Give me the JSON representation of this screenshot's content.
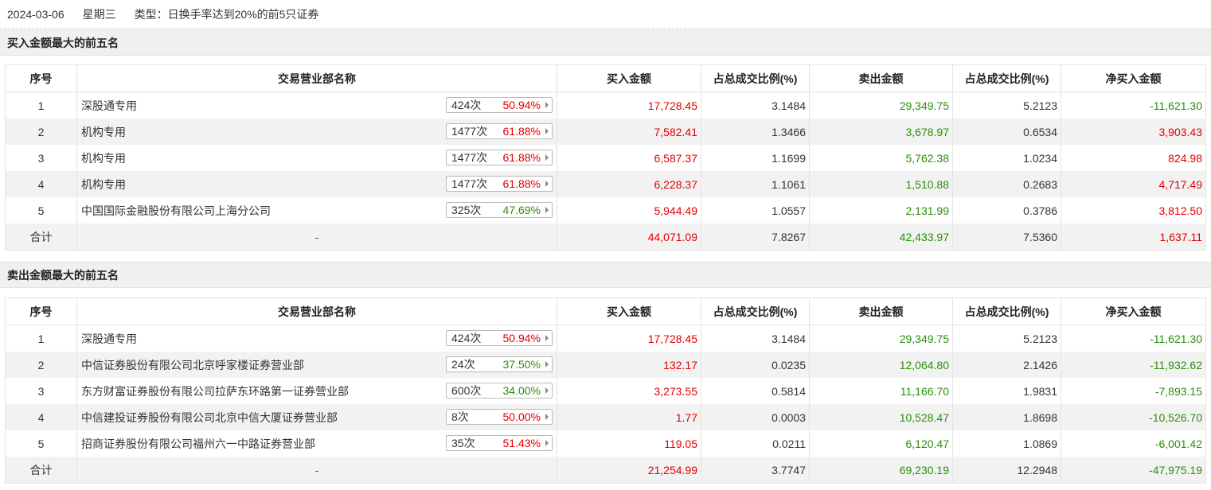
{
  "info": {
    "date": "2024-03-06",
    "weekday": "星期三",
    "type": "类型：日换手率达到20%的前5只证券"
  },
  "columns": [
    "序号",
    "交易营业部名称",
    "买入金额",
    "占总成交比例(%)",
    "卖出金额",
    "占总成交比例(%)",
    "净买入金额"
  ],
  "sections": [
    {
      "title": "买入金额最大的前五名",
      "rows": [
        {
          "idx": "1",
          "name": "深股通专用",
          "count": "424次",
          "pct": "50.94%",
          "pct_color": "red",
          "buy": "17,728.45",
          "buy_ratio": "3.1484",
          "sell": "29,349.75",
          "sell_ratio": "5.2123",
          "net": "-11,621.30",
          "net_color": "green"
        },
        {
          "idx": "2",
          "name": "机构专用",
          "count": "1477次",
          "pct": "61.88%",
          "pct_color": "red",
          "buy": "7,582.41",
          "buy_ratio": "1.3466",
          "sell": "3,678.97",
          "sell_ratio": "0.6534",
          "net": "3,903.43",
          "net_color": "red"
        },
        {
          "idx": "3",
          "name": "机构专用",
          "count": "1477次",
          "pct": "61.88%",
          "pct_color": "red",
          "buy": "6,587.37",
          "buy_ratio": "1.1699",
          "sell": "5,762.38",
          "sell_ratio": "1.0234",
          "net": "824.98",
          "net_color": "red"
        },
        {
          "idx": "4",
          "name": "机构专用",
          "count": "1477次",
          "pct": "61.88%",
          "pct_color": "red",
          "buy": "6,228.37",
          "buy_ratio": "1.1061",
          "sell": "1,510.88",
          "sell_ratio": "0.2683",
          "net": "4,717.49",
          "net_color": "red"
        },
        {
          "idx": "5",
          "name": "中国国际金融股份有限公司上海分公司",
          "count": "325次",
          "pct": "47.69%",
          "pct_color": "green",
          "buy": "5,944.49",
          "buy_ratio": "1.0557",
          "sell": "2,131.99",
          "sell_ratio": "0.3786",
          "net": "3,812.50",
          "net_color": "red"
        }
      ],
      "total": {
        "label": "合计",
        "name": "-",
        "buy": "44,071.09",
        "buy_ratio": "7.8267",
        "sell": "42,433.97",
        "sell_ratio": "7.5360",
        "net": "1,637.11",
        "net_color": "red"
      }
    },
    {
      "title": "卖出金额最大的前五名",
      "rows": [
        {
          "idx": "1",
          "name": "深股通专用",
          "count": "424次",
          "pct": "50.94%",
          "pct_color": "red",
          "buy": "17,728.45",
          "buy_ratio": "3.1484",
          "sell": "29,349.75",
          "sell_ratio": "5.2123",
          "net": "-11,621.30",
          "net_color": "green"
        },
        {
          "idx": "2",
          "name": "中信证券股份有限公司北京呼家楼证券营业部",
          "count": "24次",
          "pct": "37.50%",
          "pct_color": "green",
          "buy": "132.17",
          "buy_ratio": "0.0235",
          "sell": "12,064.80",
          "sell_ratio": "2.1426",
          "net": "-11,932.62",
          "net_color": "green"
        },
        {
          "idx": "3",
          "name": "东方财富证券股份有限公司拉萨东环路第一证券营业部",
          "count": "600次",
          "pct": "34.00%",
          "pct_color": "green",
          "buy": "3,273.55",
          "buy_ratio": "0.5814",
          "sell": "11,166.70",
          "sell_ratio": "1.9831",
          "net": "-7,893.15",
          "net_color": "green"
        },
        {
          "idx": "4",
          "name": "中信建投证券股份有限公司北京中信大厦证券营业部",
          "count": "8次",
          "pct": "50.00%",
          "pct_color": "red",
          "buy": "1.77",
          "buy_ratio": "0.0003",
          "sell": "10,528.47",
          "sell_ratio": "1.8698",
          "net": "-10,526.70",
          "net_color": "green"
        },
        {
          "idx": "5",
          "name": "招商证券股份有限公司福州六一中路证券营业部",
          "count": "35次",
          "pct": "51.43%",
          "pct_color": "red",
          "buy": "119.05",
          "buy_ratio": "0.0211",
          "sell": "6,120.47",
          "sell_ratio": "1.0869",
          "net": "-6,001.42",
          "net_color": "green"
        }
      ],
      "total": {
        "label": "合计",
        "name": "-",
        "buy": "21,254.99",
        "buy_ratio": "3.7747",
        "sell": "69,230.19",
        "sell_ratio": "12.2948",
        "net": "-47,975.19",
        "net_color": "green"
      }
    }
  ],
  "colors": {
    "red": "#e20000",
    "green": "#2a8f0a",
    "section_bg": "#f0f0f0",
    "stripe": "#f2f2f2"
  }
}
